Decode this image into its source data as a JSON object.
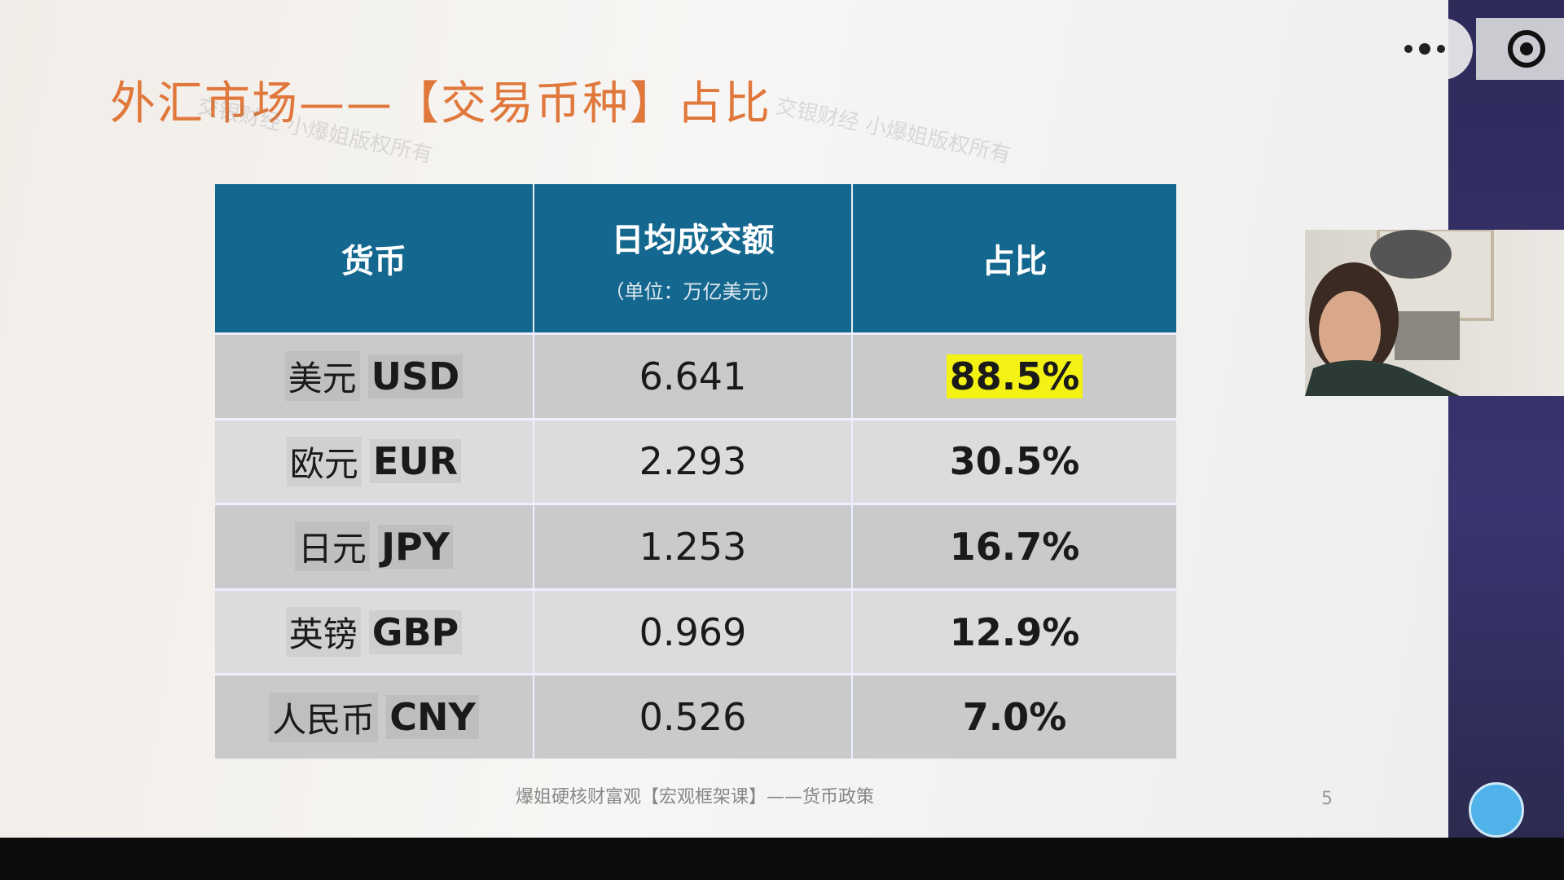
{
  "title": "外汇市场——【交易币种】占比",
  "watermark": "交银财经 小爆姐版权所有",
  "table": {
    "header": {
      "currency": "货币",
      "volume": "日均成交额",
      "volume_unit": "（单位：万亿美元）",
      "share": "占比"
    },
    "rows": [
      {
        "currency_cn": "美元",
        "currency_code": "USD",
        "volume": "6.641",
        "share": "88.5%"
      },
      {
        "currency_cn": "欧元",
        "currency_code": "EUR",
        "volume": "2.293",
        "share": "30.5%"
      },
      {
        "currency_cn": "日元",
        "currency_code": "JPY",
        "volume": "1.253",
        "share": "16.7%"
      },
      {
        "currency_cn": "英镑",
        "currency_code": "GBP",
        "volume": "0.969",
        "share": "12.9%"
      },
      {
        "currency_cn": "人民币",
        "currency_code": "CNY",
        "volume": "0.526",
        "share": "7.0%"
      }
    ]
  },
  "footer": "爆姐硬核财富观【宏观框架课】——货币政策",
  "page_number": "5"
}
